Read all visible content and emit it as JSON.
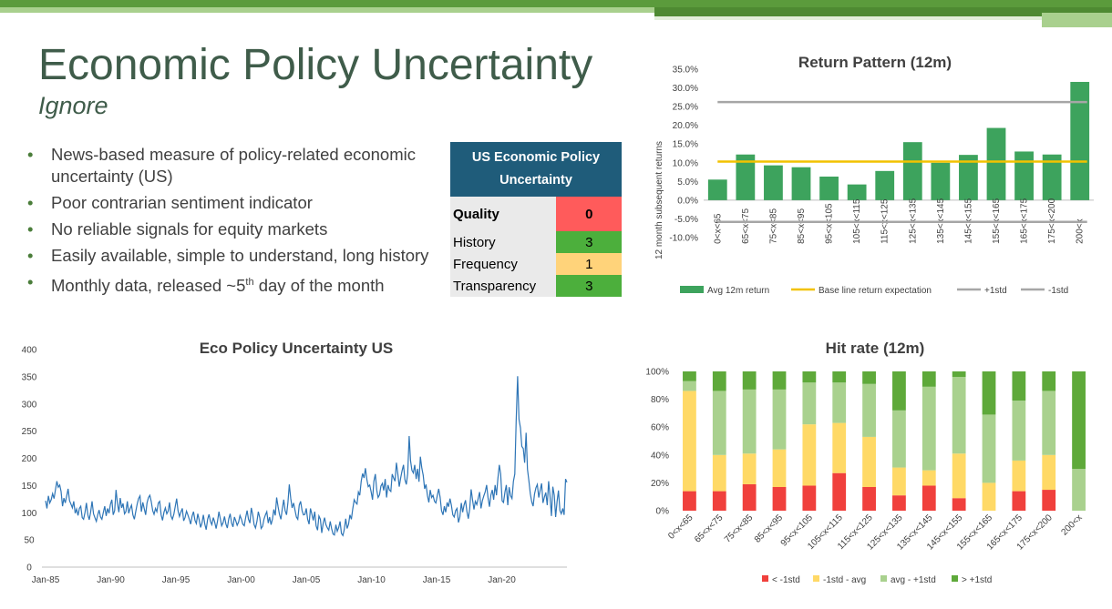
{
  "slide": {
    "title": "Economic Policy Uncertainty",
    "subtitle": "Ignore",
    "bullets": [
      {
        "text": "News-based measure of policy-related economic uncertainty (US)"
      },
      {
        "text": "Poor contrarian sentiment indicator"
      },
      {
        "text": "No reliable signals for equity markets"
      },
      {
        "text": "Easily available, simple to understand, long history"
      },
      {
        "text_before": "Monthly data, released ~5",
        "sup": "th",
        "text_after": " day of the month"
      }
    ]
  },
  "scorecard": {
    "header": "US Economic Policy Uncertainty",
    "rows": [
      {
        "label": "Quality",
        "value": "0",
        "color": "#ff5b5b"
      },
      {
        "label": "History",
        "value": "3",
        "color": "#4caf3c"
      },
      {
        "label": "Frequency",
        "value": "1",
        "color": "#ffd37a"
      },
      {
        "label": "Transparency",
        "value": "3",
        "color": "#4caf3c"
      }
    ]
  },
  "chart_data": [
    {
      "type": "bar",
      "title": "Return Pattern (12m)",
      "ylabel": "12 month subsequent returns",
      "categories": [
        "0<x<65",
        "65<x<75",
        "75<x<85",
        "85<x<95",
        "95<x<105",
        "105<x<115",
        "115<x<125",
        "125<x<135",
        "135<x<145",
        "145<x<155",
        "155<x<165",
        "165<x<175",
        "175<x<200",
        "200<x"
      ],
      "ylim": [
        -0.1,
        0.35
      ],
      "yticks": [
        -0.1,
        -0.05,
        0,
        0.05,
        0.1,
        0.15,
        0.2,
        0.25,
        0.3,
        0.35
      ],
      "ytick_labels": [
        "-10.0%",
        "-5.0%",
        "0.0%",
        "5.0%",
        "10.0%",
        "15.0%",
        "20.0%",
        "25.0%",
        "30.0%",
        "35.0%"
      ],
      "series": [
        {
          "name": "Avg 12m return",
          "values": [
            0.055,
            0.122,
            0.093,
            0.088,
            0.063,
            0.042,
            0.078,
            0.155,
            0.1,
            0.121,
            0.193,
            0.13,
            0.122,
            0.316
          ],
          "color": "#3da35d"
        },
        {
          "name": "Base line return expectation",
          "constant": 0.103,
          "color": "#f2c200"
        },
        {
          "name": "+1std",
          "constant": 0.262,
          "color": "#a6a6a6"
        },
        {
          "name": "-1std",
          "constant": -0.058,
          "color": "#a6a6a6"
        }
      ],
      "legend_position": "bottom"
    },
    {
      "type": "line",
      "title": "Eco Policy Uncertainty US",
      "ylim": [
        0,
        400
      ],
      "yticks": [
        0,
        50,
        100,
        150,
        200,
        250,
        300,
        350,
        400
      ],
      "x_start": "1985-01",
      "x_end": "2024-12",
      "xtick_labels": [
        "Jan-85",
        "Jan-90",
        "Jan-95",
        "Jan-00",
        "Jan-05",
        "Jan-10",
        "Jan-15",
        "Jan-20"
      ],
      "series": [
        {
          "color": "#2e75b6",
          "values": [
            122,
            108,
            131,
            118,
            124,
            135,
            126,
            142,
            158,
            147,
            151,
            139,
            112,
            127,
            118,
            131,
            144,
            122,
            116,
            109,
            121,
            99,
            107,
            95,
            108,
            112,
            91,
            88,
            101,
            118,
            96,
            87,
            102,
            121,
            98,
            91,
            84,
            96,
            105,
            92,
            88,
            101,
            112,
            94,
            108,
            99,
            115,
            124,
            96,
            104,
            142,
            118,
            101,
            127,
            109,
            117,
            98,
            102,
            121,
            99,
            108,
            114,
            96,
            88,
            102,
            116,
            126,
            131,
            102,
            119,
            108,
            96,
            118,
            128,
            132,
            121,
            104,
            97,
            108,
            102,
            118,
            121,
            96,
            86,
            101,
            109,
            98,
            103,
            119,
            94,
            88,
            97,
            111,
            126,
            104,
            93,
            101,
            108,
            85,
            91,
            103,
            96,
            88,
            79,
            94,
            102,
            86,
            80,
            98,
            87,
            73,
            81,
            96,
            79,
            69,
            88,
            97,
            84,
            78,
            91,
            83,
            71,
            84,
            102,
            89,
            76,
            82,
            93,
            79,
            72,
            89,
            98,
            81,
            74,
            92,
            85,
            77,
            83,
            95,
            88,
            79,
            76,
            91,
            104,
            88,
            81,
            109,
            96,
            78,
            72,
            84,
            102,
            91,
            71,
            75,
            88,
            96,
            102,
            81,
            92,
            78,
            88,
            106,
            95,
            128,
            111,
            97,
            88,
            107,
            124,
            104,
            96,
            119,
            152,
            126,
            109,
            118,
            105,
            92,
            88,
            114,
            121,
            104,
            96,
            97,
            108,
            88,
            79,
            108,
            97,
            86,
            102,
            76,
            68,
            94,
            88,
            63,
            81,
            91,
            78,
            72,
            68,
            84,
            71,
            61,
            59,
            78,
            66,
            73,
            84,
            62,
            58,
            69,
            89,
            71,
            79,
            96,
            88,
            107,
            124,
            119,
            116,
            138,
            132,
            158,
            172,
            164,
            182,
            161,
            148,
            151,
            139,
            124,
            158,
            171,
            142,
            128,
            133,
            149,
            154,
            141,
            162,
            128,
            151,
            142,
            139,
            171,
            164,
            158,
            192,
            171,
            148,
            164,
            177,
            188,
            161,
            152,
            172,
            241,
            196,
            178,
            173,
            188,
            162,
            181,
            157,
            203,
            182,
            169,
            144,
            152,
            131,
            119,
            142,
            128,
            132,
            121,
            118,
            132,
            144,
            128,
            104,
            96,
            112,
            101,
            119,
            111,
            126,
            114,
            96,
            92,
            104,
            108,
            82,
            92,
            118,
            101,
            114,
            123,
            103,
            89,
            107,
            143,
            124,
            106,
            121,
            115,
            126,
            138,
            108,
            122,
            131,
            138,
            151,
            128,
            111,
            132,
            142,
            124,
            151,
            132,
            162,
            188,
            171,
            122,
            119,
            138,
            151,
            114,
            147,
            131,
            126,
            158,
            171,
            269,
            351,
            272,
            256,
            222,
            218,
            192,
            247,
            180,
            158,
            135,
            120,
            112,
            134,
            146,
            152,
            128,
            141,
            154,
            118,
            129,
            137,
            114,
            158,
            131,
            94,
            148,
            132,
            92,
            121,
            141,
            104,
            98,
            108,
            96,
            162,
            156
          ]
        }
      ],
      "grid": false
    },
    {
      "type": "bar",
      "stacked": true,
      "title": "Hit rate (12m)",
      "categories": [
        "0<x<65",
        "65<x<75",
        "75<x<85",
        "85<x<95",
        "95<x<105",
        "105<x<115",
        "115<x<125",
        "125<x<135",
        "135<x<145",
        "145<x<155",
        "155<x<165",
        "165<x<175",
        "175<x<200",
        "200<x"
      ],
      "ylim": [
        0,
        1
      ],
      "yticks": [
        0,
        0.2,
        0.4,
        0.6,
        0.8,
        1.0
      ],
      "ytick_labels": [
        "0%",
        "20%",
        "40%",
        "60%",
        "80%",
        "100%"
      ],
      "series": [
        {
          "name": "< -1std",
          "color": "#f0403c",
          "values": [
            0.14,
            0.14,
            0.19,
            0.17,
            0.18,
            0.27,
            0.17,
            0.11,
            0.18,
            0.09,
            0,
            0.14,
            0.15,
            0
          ]
        },
        {
          "name": "-1std - avg",
          "color": "#ffd966",
          "values": [
            0.72,
            0.26,
            0.22,
            0.27,
            0.44,
            0.36,
            0.36,
            0.2,
            0.11,
            0.32,
            0.2,
            0.22,
            0.25,
            0
          ]
        },
        {
          "name": "avg - +1std",
          "color": "#a9d18e",
          "values": [
            0.07,
            0.46,
            0.46,
            0.43,
            0.3,
            0.29,
            0.38,
            0.41,
            0.6,
            0.55,
            0.49,
            0.43,
            0.46,
            0.3
          ]
        },
        {
          "name": "> +1std",
          "color": "#5ea93a",
          "values": [
            0.07,
            0.14,
            0.13,
            0.13,
            0.08,
            0.08,
            0.09,
            0.28,
            0.11,
            0.04,
            0.31,
            0.21,
            0.14,
            0.7
          ]
        }
      ],
      "legend_position": "bottom"
    }
  ]
}
